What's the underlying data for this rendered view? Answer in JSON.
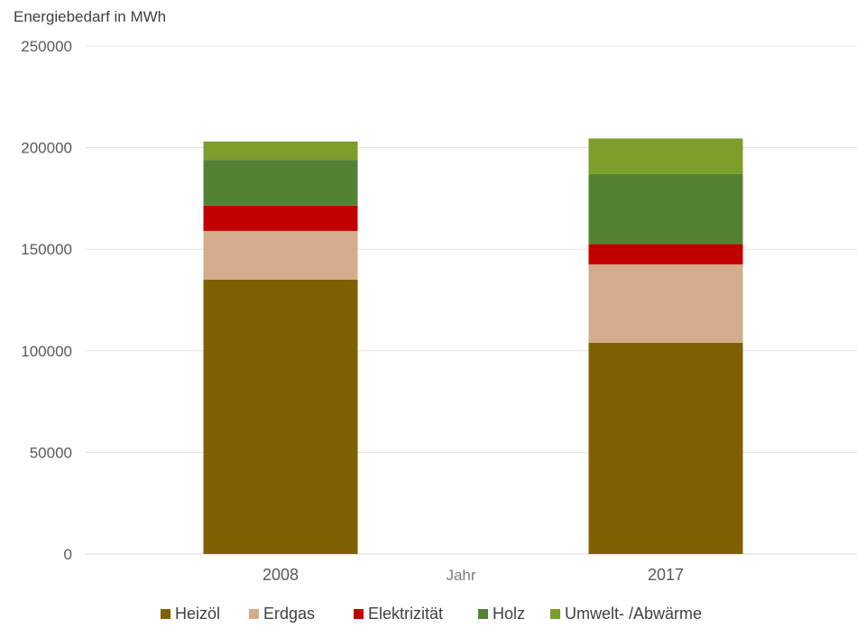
{
  "chart_data": {
    "type": "bar",
    "stacked": true,
    "ylabel": "Energiebedarf in MWh",
    "xlabel": "Jahr",
    "categories": [
      "2008",
      "2017"
    ],
    "ylim": [
      0,
      250000
    ],
    "yticks": [
      "0",
      "50000",
      "100000",
      "150000",
      "200000",
      "250000"
    ],
    "grid": true,
    "legend_position": "bottom",
    "series": [
      {
        "name": "Heizöl",
        "color": "#7f6000",
        "values": [
          135000,
          104000
        ]
      },
      {
        "name": "Erdgas",
        "color": "#d2ac8d",
        "values": [
          24000,
          38500
        ]
      },
      {
        "name": "Elektrizität",
        "color": "#c00000",
        "values": [
          12500,
          10000
        ]
      },
      {
        "name": "Holz",
        "color": "#548235",
        "values": [
          22500,
          34500
        ]
      },
      {
        "name": "Umwelt- /Abwärme",
        "color": "#7c9e2a",
        "values": [
          9000,
          17500
        ]
      }
    ]
  }
}
